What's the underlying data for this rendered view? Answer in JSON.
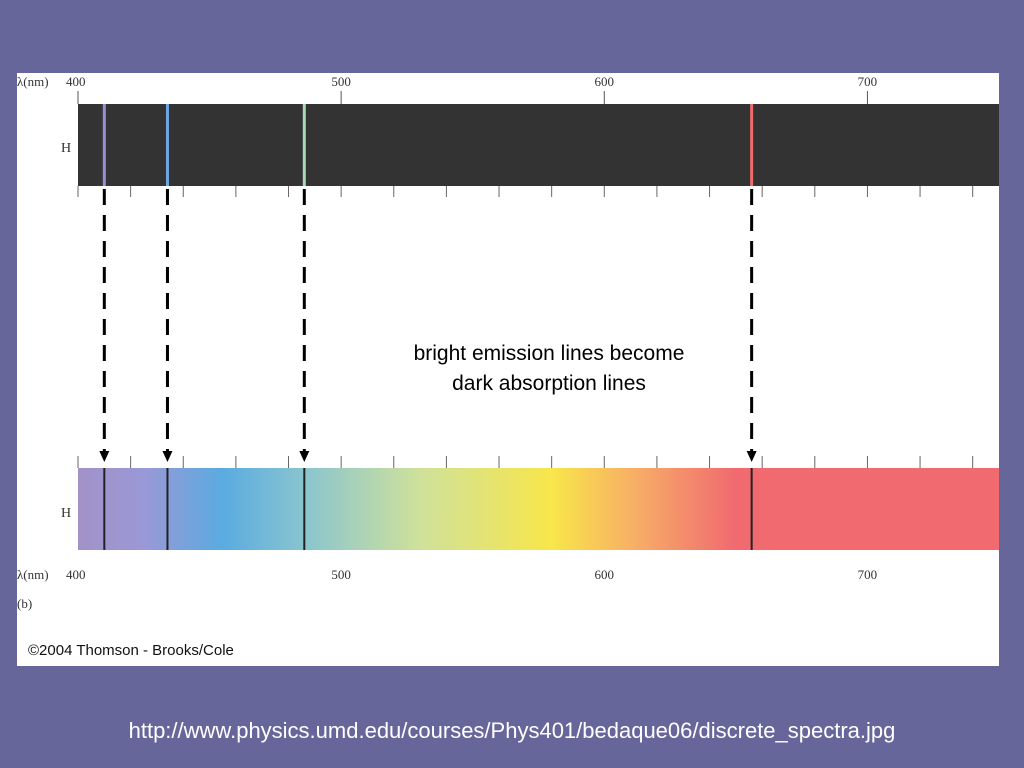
{
  "axis": {
    "unit_label": "λ(nm)",
    "range_nm": [
      400,
      750
    ],
    "ticks": [
      "400",
      "500",
      "600",
      "700"
    ],
    "tick_values": [
      400,
      500,
      600,
      700
    ],
    "minor_step_nm": 20
  },
  "emission_spectrum": {
    "element_label": "H",
    "background": "#333333",
    "lines": [
      {
        "wavelength_nm": 410,
        "color": "#9a8ed6"
      },
      {
        "wavelength_nm": 434,
        "color": "#6fa6e2"
      },
      {
        "wavelength_nm": 486,
        "color": "#a6dbb6"
      },
      {
        "wavelength_nm": 656,
        "color": "#f06a6a"
      }
    ]
  },
  "absorption_spectrum": {
    "element_label": "H",
    "panel_label": "(b)",
    "lines_nm": [
      410,
      434,
      486,
      656
    ],
    "gradient": [
      {
        "nm": 400,
        "color": "#a292c8"
      },
      {
        "nm": 425,
        "color": "#9a98d6"
      },
      {
        "nm": 455,
        "color": "#5aabe0"
      },
      {
        "nm": 485,
        "color": "#88c4d0"
      },
      {
        "nm": 530,
        "color": "#cfe19b"
      },
      {
        "nm": 580,
        "color": "#f8e64a"
      },
      {
        "nm": 615,
        "color": "#f7a868"
      },
      {
        "nm": 650,
        "color": "#f06a70"
      },
      {
        "nm": 750,
        "color": "#f06a70"
      }
    ]
  },
  "caption": {
    "line1": "bright emission lines become",
    "line2": "dark absorption lines"
  },
  "copyright": "©2004 Thomson - Brooks/Cole",
  "url": "http://www.physics.umd.edu/courses/Phys401/bedaque06/discrete_spectra.jpg"
}
